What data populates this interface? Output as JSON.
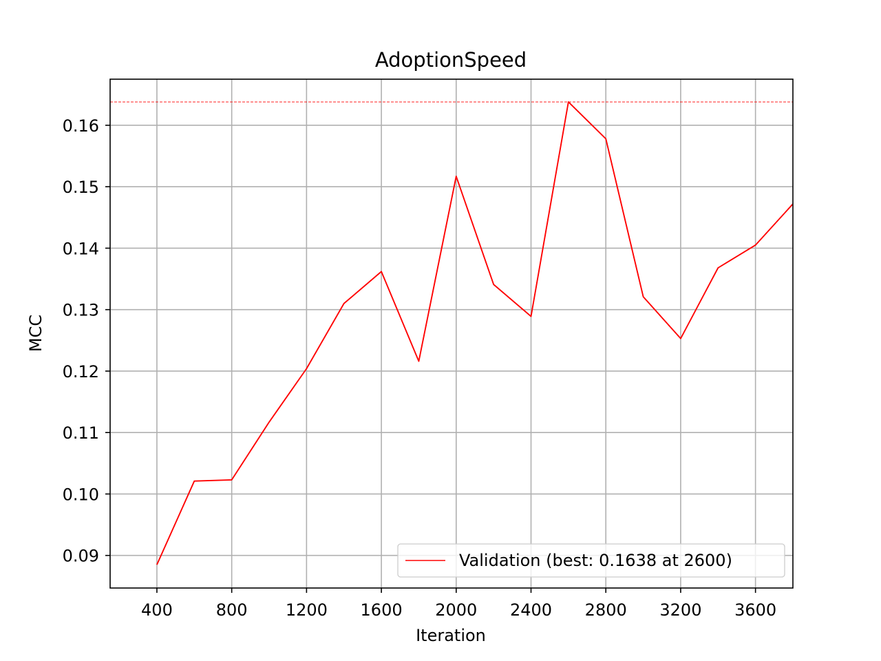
{
  "chart_data": {
    "type": "line",
    "title": "AdoptionSpeed",
    "xlabel": "Iteration",
    "ylabel": "MCC",
    "xlim": [
      150,
      3800
    ],
    "ylim": [
      0.0847,
      0.1675
    ],
    "xticks": [
      400,
      800,
      1200,
      1600,
      2000,
      2400,
      2800,
      3200,
      3600
    ],
    "xtick_labels": [
      "400",
      "800",
      "1200",
      "1600",
      "2000",
      "2400",
      "2800",
      "3200",
      "3600"
    ],
    "yticks": [
      0.09,
      0.1,
      0.11,
      0.12,
      0.13,
      0.14,
      0.15,
      0.16
    ],
    "ytick_labels": [
      "0.09",
      "0.10",
      "0.11",
      "0.12",
      "0.13",
      "0.14",
      "0.15",
      "0.16"
    ],
    "grid": true,
    "legend_position": "lower right",
    "series": [
      {
        "name": "Validation (best: 0.1638 at 2600)",
        "color": "#ff0000",
        "x": [
          400,
          600,
          800,
          1000,
          1200,
          1400,
          1600,
          1800,
          2000,
          2200,
          2400,
          2600,
          2800,
          3000,
          3200,
          3400,
          3600,
          3800
        ],
        "y": [
          0.0885,
          0.1021,
          0.1023,
          0.1117,
          0.1204,
          0.131,
          0.1362,
          0.1216,
          0.1517,
          0.1341,
          0.1289,
          0.1638,
          0.1578,
          0.1321,
          0.1253,
          0.1368,
          0.1405,
          0.1472
        ]
      }
    ],
    "reference_lines": [
      {
        "orientation": "horizontal",
        "y": 0.1638,
        "color": "#ff0000",
        "style": "dashed"
      }
    ],
    "colors": {
      "grid": "#b0b0b0",
      "axes": "#000000",
      "background": "#ffffff",
      "legend_border": "#cccccc"
    }
  }
}
